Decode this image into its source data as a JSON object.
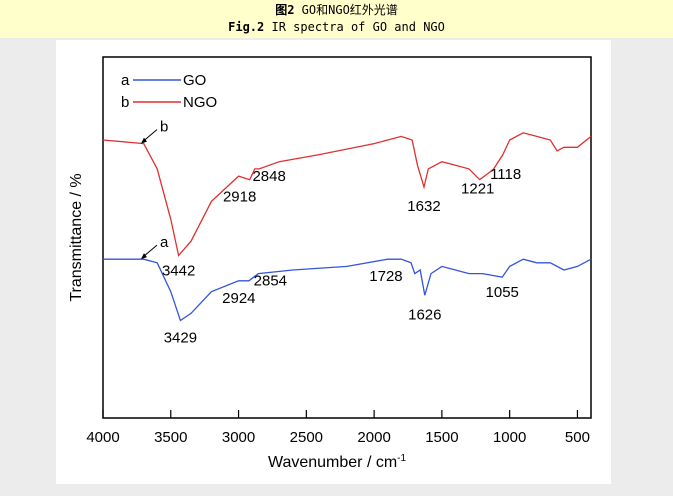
{
  "caption": {
    "cn_prefix": "图2",
    "cn_text": "GO和NGO红外光谱",
    "en_prefix": "Fig.2",
    "en_text": "IR spectra of GO and NGO"
  },
  "colors": {
    "GO": "#3355dd",
    "NGO": "#e03030",
    "header_bg": "#ffffcc"
  },
  "chart_data": {
    "type": "line",
    "xlabel": "Wavenumber / cm",
    "xlabel_sup": "-1",
    "ylabel": "Transmittance / %",
    "xlim": [
      4000,
      400
    ],
    "ylim": [
      0,
      100
    ],
    "xticks": [
      4000,
      3500,
      3000,
      2500,
      2000,
      1500,
      1000,
      500
    ],
    "legend": [
      {
        "key": "a",
        "name": "GO"
      },
      {
        "key": "b",
        "name": "NGO"
      }
    ],
    "legend_position": "top-left",
    "series": [
      {
        "name": "NGO",
        "key": "b",
        "x": [
          4000,
          3700,
          3600,
          3500,
          3442,
          3350,
          3200,
          3000,
          2918,
          2880,
          2848,
          2700,
          2400,
          2000,
          1800,
          1720,
          1680,
          1632,
          1600,
          1500,
          1400,
          1300,
          1221,
          1150,
          1118,
          1050,
          1000,
          900,
          800,
          700,
          650,
          600,
          500,
          400
        ],
        "y": [
          77,
          76,
          69,
          55,
          45,
          49,
          60,
          67,
          66,
          69,
          69,
          71,
          73,
          76,
          78,
          77,
          70,
          64,
          69,
          71,
          70,
          69,
          66,
          68,
          69,
          73,
          77,
          79,
          78,
          77,
          74,
          75,
          75,
          78
        ]
      },
      {
        "name": "GO",
        "key": "a",
        "x": [
          4000,
          3700,
          3600,
          3500,
          3429,
          3350,
          3200,
          3000,
          2924,
          2854,
          2600,
          2200,
          1900,
          1800,
          1728,
          1700,
          1660,
          1626,
          1580,
          1500,
          1400,
          1300,
          1200,
          1055,
          1000,
          900,
          800,
          700,
          600,
          500,
          400
        ],
        "y": [
          44,
          44,
          43,
          35,
          27,
          29,
          35,
          38,
          38,
          40,
          41,
          42,
          44,
          44,
          43,
          40,
          41,
          34,
          40,
          42,
          41,
          40,
          40,
          39,
          42,
          44,
          43,
          43,
          41,
          42,
          44
        ]
      }
    ],
    "annotations": [
      {
        "text": "3442",
        "x": 3442,
        "y": 45,
        "series": "NGO"
      },
      {
        "text": "2918",
        "x": 2918,
        "y": 66,
        "series": "NGO"
      },
      {
        "text": "2848",
        "x": 2848,
        "y": 69,
        "series": "NGO"
      },
      {
        "text": "1632",
        "x": 1632,
        "y": 64,
        "series": "NGO"
      },
      {
        "text": "1221",
        "x": 1221,
        "y": 66,
        "series": "NGO"
      },
      {
        "text": "1118",
        "x": 1118,
        "y": 69,
        "series": "NGO"
      },
      {
        "text": "3429",
        "x": 3429,
        "y": 27,
        "series": "GO"
      },
      {
        "text": "2924",
        "x": 2924,
        "y": 38,
        "series": "GO"
      },
      {
        "text": "2854",
        "x": 2854,
        "y": 40,
        "series": "GO"
      },
      {
        "text": "1728",
        "x": 1728,
        "y": 43,
        "series": "GO"
      },
      {
        "text": "1626",
        "x": 1626,
        "y": 34,
        "series": "GO"
      },
      {
        "text": "1055",
        "x": 1055,
        "y": 39,
        "series": "GO"
      }
    ],
    "curve_markers": [
      {
        "text": "b",
        "series": "NGO"
      },
      {
        "text": "a",
        "series": "GO"
      }
    ]
  }
}
